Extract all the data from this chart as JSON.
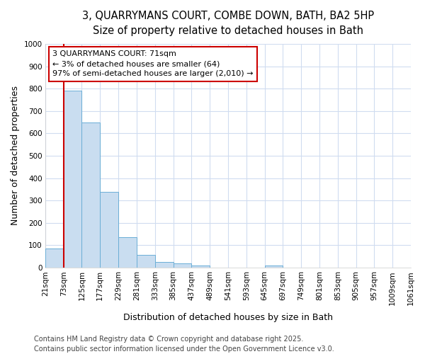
{
  "title_line1": "3, QUARRYMANS COURT, COMBE DOWN, BATH, BA2 5HP",
  "title_line2": "Size of property relative to detached houses in Bath",
  "xlabel": "Distribution of detached houses by size in Bath",
  "ylabel": "Number of detached properties",
  "bar_color": "#c9ddf0",
  "bar_edge_color": "#6baed6",
  "background_color": "#ffffff",
  "grid_color": "#d0dcf0",
  "bins": [
    21,
    73,
    125,
    177,
    229,
    281,
    333,
    385,
    437,
    489,
    541,
    593,
    645,
    697,
    749,
    801,
    853,
    905,
    957,
    1009,
    1061
  ],
  "bin_labels": [
    "21sqm",
    "73sqm",
    "125sqm",
    "177sqm",
    "229sqm",
    "281sqm",
    "333sqm",
    "385sqm",
    "437sqm",
    "489sqm",
    "541sqm",
    "593sqm",
    "645sqm",
    "697sqm",
    "749sqm",
    "801sqm",
    "853sqm",
    "905sqm",
    "957sqm",
    "1009sqm",
    "1061sqm"
  ],
  "values": [
    85,
    790,
    650,
    338,
    135,
    58,
    25,
    20,
    10,
    0,
    0,
    0,
    10,
    0,
    0,
    0,
    0,
    0,
    0,
    0
  ],
  "ylim": [
    0,
    1000
  ],
  "yticks": [
    0,
    100,
    200,
    300,
    400,
    500,
    600,
    700,
    800,
    900,
    1000
  ],
  "vline_x": 73,
  "vline_color": "#cc0000",
  "annotation_text": "3 QUARRYMANS COURT: 71sqm\n← 3% of detached houses are smaller (64)\n97% of semi-detached houses are larger (2,010) →",
  "annotation_box_color": "#ffffff",
  "annotation_edge_color": "#cc0000",
  "footer_line1": "Contains HM Land Registry data © Crown copyright and database right 2025.",
  "footer_line2": "Contains public sector information licensed under the Open Government Licence v3.0.",
  "title_fontsize": 10.5,
  "subtitle_fontsize": 9.5,
  "axis_label_fontsize": 9,
  "tick_fontsize": 7.5,
  "annotation_fontsize": 8,
  "footer_fontsize": 7
}
